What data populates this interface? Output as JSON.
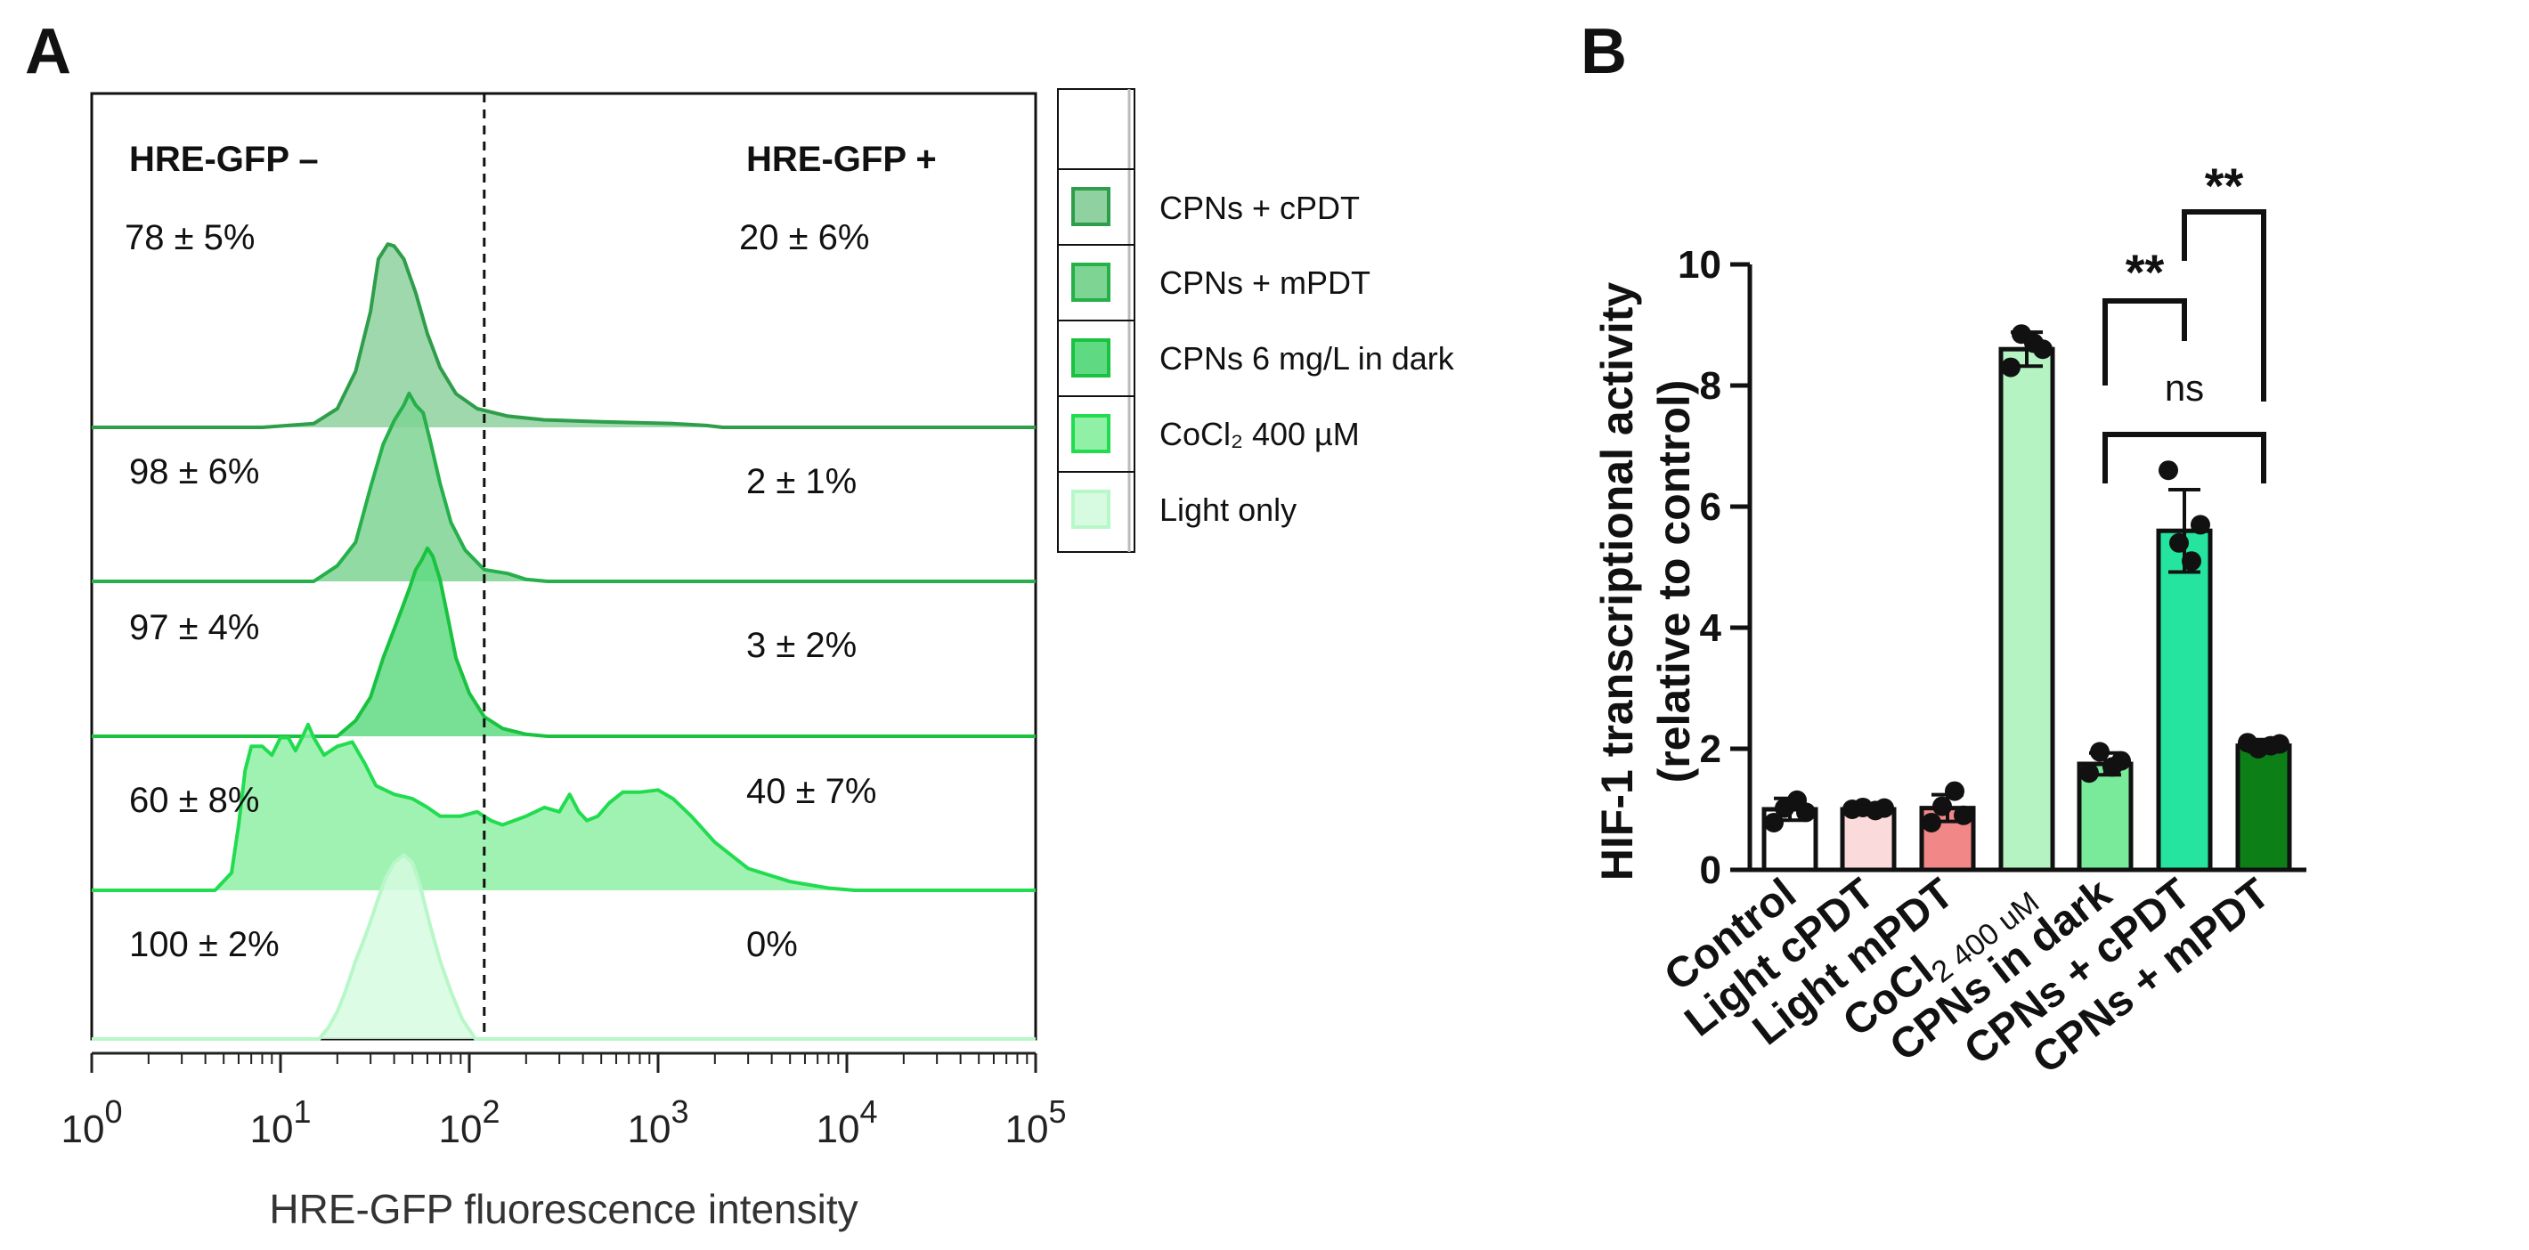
{
  "chart_data": [
    {
      "panel": "A",
      "type": "area",
      "subtype": "flow-cytometry-histogram-overlay",
      "xlabel": "HRE-GFP fluorescence intensity",
      "x_scale": "log10",
      "xlim": [
        1,
        100000
      ],
      "x_tick_labels": [
        {
          "base": "10",
          "exp": "0"
        },
        {
          "base": "10",
          "exp": "1"
        },
        {
          "base": "10",
          "exp": "2"
        },
        {
          "base": "10",
          "exp": "3"
        },
        {
          "base": "10",
          "exp": "4"
        },
        {
          "base": "10",
          "exp": "5"
        }
      ],
      "gate_threshold": 120,
      "gate_labels": {
        "negative": "HRE-GFP –",
        "positive": "HRE-GFP +"
      },
      "legend_position": "right",
      "series": [
        {
          "name": "CPNs + cPDT",
          "color": "#2e9e4a",
          "fill": "#8fd1a0",
          "negative": "78 ± 5%",
          "positive": "20 ± 6%",
          "curve": [
            [
              8,
              0
            ],
            [
              15,
              2
            ],
            [
              20,
              10
            ],
            [
              25,
              30
            ],
            [
              30,
              62
            ],
            [
              33,
              90
            ],
            [
              37,
              98
            ],
            [
              40,
              97
            ],
            [
              45,
              90
            ],
            [
              48,
              82
            ],
            [
              52,
              72
            ],
            [
              60,
              50
            ],
            [
              70,
              32
            ],
            [
              85,
              18
            ],
            [
              110,
              10
            ],
            [
              160,
              6
            ],
            [
              250,
              4
            ],
            [
              500,
              3
            ],
            [
              1200,
              2
            ],
            [
              1800,
              1
            ],
            [
              2200,
              0
            ]
          ]
        },
        {
          "name": "CPNs + mPDT",
          "color": "#25b04a",
          "fill": "#7ed493",
          "negative": "98 ± 6%",
          "positive": "2 ± 1%",
          "curve": [
            [
              15,
              0
            ],
            [
              20,
              8
            ],
            [
              25,
              20
            ],
            [
              30,
              48
            ],
            [
              35,
              70
            ],
            [
              40,
              82
            ],
            [
              45,
              90
            ],
            [
              48,
              96
            ],
            [
              52,
              90
            ],
            [
              57,
              86
            ],
            [
              62,
              72
            ],
            [
              70,
              50
            ],
            [
              80,
              30
            ],
            [
              95,
              16
            ],
            [
              120,
              6
            ],
            [
              160,
              4
            ],
            [
              200,
              1
            ],
            [
              260,
              0
            ]
          ]
        },
        {
          "name": "CPNs 6 mg/L in dark",
          "color": "#19c23f",
          "fill": "#5fda82",
          "negative": "97 ± 4%",
          "positive": "3 ± 2%",
          "curve": [
            [
              20,
              0
            ],
            [
              25,
              8
            ],
            [
              30,
              20
            ],
            [
              35,
              40
            ],
            [
              42,
              60
            ],
            [
              48,
              75
            ],
            [
              52,
              85
            ],
            [
              56,
              90
            ],
            [
              60,
              96
            ],
            [
              64,
              92
            ],
            [
              70,
              80
            ],
            [
              78,
              58
            ],
            [
              85,
              40
            ],
            [
              100,
              22
            ],
            [
              120,
              10
            ],
            [
              150,
              4
            ],
            [
              200,
              1
            ],
            [
              260,
              0
            ]
          ]
        },
        {
          "name": "CoCl₂ 400 µM",
          "color": "#22dc50",
          "fill": "#8ff0a6",
          "negative": "60 ± 8%",
          "positive": "40 ± 7%",
          "curve": [
            [
              4.5,
              0
            ],
            [
              5.5,
              8
            ],
            [
              6,
              30
            ],
            [
              6.5,
              55
            ],
            [
              7,
              66
            ],
            [
              8,
              66
            ],
            [
              9,
              62
            ],
            [
              10,
              70
            ],
            [
              11,
              70
            ],
            [
              12,
              64
            ],
            [
              13,
              70
            ],
            [
              14,
              76
            ],
            [
              15,
              70
            ],
            [
              17,
              62
            ],
            [
              20,
              66
            ],
            [
              24,
              68
            ],
            [
              28,
              58
            ],
            [
              32,
              48
            ],
            [
              40,
              44
            ],
            [
              50,
              42
            ],
            [
              60,
              38
            ],
            [
              70,
              34
            ],
            [
              90,
              34
            ],
            [
              110,
              36
            ],
            [
              130,
              32
            ],
            [
              150,
              30
            ],
            [
              200,
              34
            ],
            [
              250,
              38
            ],
            [
              300,
              36
            ],
            [
              340,
              44
            ],
            [
              380,
              36
            ],
            [
              420,
              32
            ],
            [
              480,
              34
            ],
            [
              550,
              40
            ],
            [
              650,
              45
            ],
            [
              800,
              45
            ],
            [
              1000,
              46
            ],
            [
              1200,
              42
            ],
            [
              1500,
              34
            ],
            [
              2000,
              22
            ],
            [
              3000,
              10
            ],
            [
              5000,
              4
            ],
            [
              8000,
              1
            ],
            [
              11000,
              0
            ]
          ]
        },
        {
          "name": "Light only",
          "color": "#b8f7c8",
          "fill": "#d7fbe0",
          "negative": "100 ± 2%",
          "positive": "0%",
          "curve": [
            [
              16,
              0
            ],
            [
              18,
              6
            ],
            [
              20,
              14
            ],
            [
              22,
              24
            ],
            [
              25,
              40
            ],
            [
              28,
              52
            ],
            [
              30,
              60
            ],
            [
              33,
              72
            ],
            [
              36,
              82
            ],
            [
              40,
              90
            ],
            [
              45,
              94
            ],
            [
              50,
              90
            ],
            [
              55,
              78
            ],
            [
              62,
              58
            ],
            [
              70,
              40
            ],
            [
              80,
              24
            ],
            [
              92,
              10
            ],
            [
              108,
              0
            ]
          ]
        }
      ]
    },
    {
      "panel": "B",
      "type": "bar",
      "ylabel_line1": "HIF-1 transcriptional activity",
      "ylabel_line2": "(relative to control)",
      "ylim": [
        0,
        10
      ],
      "yticks": [
        "0",
        "2",
        "4",
        "6",
        "8",
        "10"
      ],
      "categories": [
        "Control",
        "Light cPDT",
        "Light mPDT",
        "CoCl",
        "CPNs in dark",
        "CPNs + cPDT",
        "CPNs + mPDT"
      ],
      "category_subscript": {
        "index": 3,
        "sub": "2 400 uM"
      },
      "values": [
        1.0,
        1.0,
        1.02,
        8.6,
        1.75,
        5.6,
        2.05
      ],
      "errors": [
        0.18,
        0.07,
        0.22,
        0.28,
        0.18,
        0.68,
        0.1
      ],
      "colors": [
        "#ffffff",
        "#fbdadb",
        "#f18787",
        "#b6f3c3",
        "#78ea9a",
        "#24e49f",
        "#0c7f16"
      ],
      "points": [
        [
          0.78,
          1.02,
          1.15,
          0.95
        ],
        [
          1.0,
          1.03,
          0.98,
          1.02
        ],
        [
          0.78,
          1.05,
          1.3,
          0.9
        ],
        [
          8.3,
          8.85,
          8.7,
          8.6
        ],
        [
          1.6,
          1.95,
          1.7,
          1.8
        ],
        [
          6.6,
          5.4,
          5.1,
          5.7
        ],
        [
          2.1,
          2.0,
          2.05,
          2.08
        ]
      ],
      "annotations": [
        {
          "text": "**",
          "from": 4,
          "to": 5
        },
        {
          "text": "**",
          "from": 5,
          "to": 6
        },
        {
          "text": "ns",
          "from": 4,
          "to": 6
        }
      ]
    }
  ]
}
